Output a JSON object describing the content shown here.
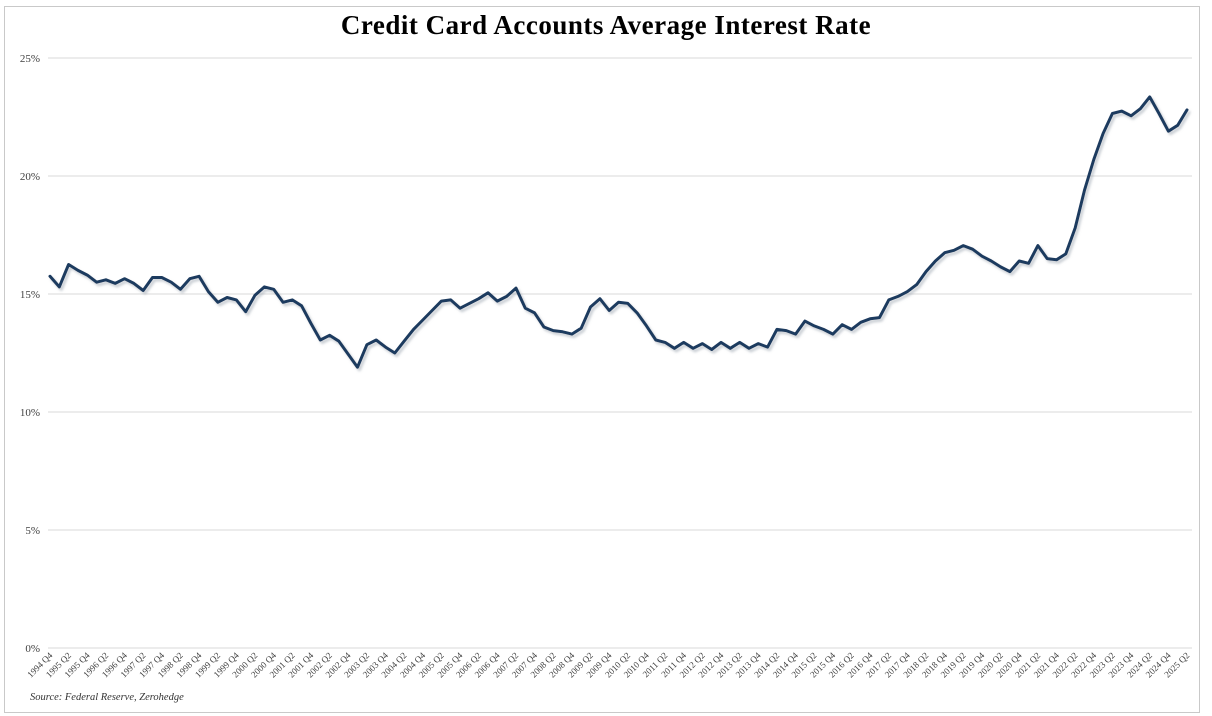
{
  "title": "Credit Card Accounts Average Interest Rate",
  "source": "Source: Federal Reserve, Zerohedge",
  "colors": {
    "line": "#1f3a5e",
    "line_shadow": "#9aa3ad",
    "grid": "#d9d9d9",
    "frame": "#c9c9c9",
    "tick_text": "#404040",
    "title_text": "#000000"
  },
  "y_axis": {
    "ticks": [
      "0%",
      "5%",
      "10%",
      "15%",
      "20%",
      "25%"
    ],
    "min": 0,
    "max": 25
  },
  "x_axis": {
    "labels": [
      "1994 Q4",
      "1995 Q2",
      "1995 Q4",
      "1996 Q2",
      "1996 Q4",
      "1997 Q2",
      "1997 Q4",
      "1998 Q2",
      "1998 Q4",
      "1999 Q2",
      "1999 Q4",
      "2000 Q2",
      "2000 Q4",
      "2001 Q2",
      "2001 Q4",
      "2002 Q2",
      "2002 Q4",
      "2003 Q2",
      "2003 Q4",
      "2004 Q2",
      "2004 Q4",
      "2005 Q2",
      "2005 Q4",
      "2006 Q2",
      "2006 Q4",
      "2007 Q2",
      "2007 Q4",
      "2008 Q2",
      "2008 Q4",
      "2009 Q2",
      "2009 Q4",
      "2010 Q2",
      "2010 Q4",
      "2011 Q2",
      "2011 Q4",
      "2012 Q2",
      "2012 Q4",
      "2013 Q2",
      "2013 Q4",
      "2014 Q2",
      "2014 Q4",
      "2015 Q2",
      "2015 Q4",
      "2016 Q2",
      "2016 Q4",
      "2017 Q2",
      "2017 Q4",
      "2018 Q2",
      "2018 Q4",
      "2019 Q2",
      "2019 Q4",
      "2020 Q2",
      "2020 Q4",
      "2021 Q2",
      "2021 Q4",
      "2022 Q2",
      "2022 Q4",
      "2023 Q2",
      "2023 Q4",
      "2024 Q2",
      "2024 Q4",
      "2025 Q2"
    ]
  },
  "chart_data": {
    "type": "line",
    "title": "Credit Card Accounts Average Interest Rate",
    "xlabel": "",
    "ylabel": "",
    "ylim": [
      0,
      25
    ],
    "grid": "horizontal",
    "legend": "none",
    "series_name": "Average interest rate (%)",
    "x": [
      "1994 Q4",
      "1995 Q1",
      "1995 Q2",
      "1995 Q3",
      "1995 Q4",
      "1996 Q1",
      "1996 Q2",
      "1996 Q3",
      "1996 Q4",
      "1997 Q1",
      "1997 Q2",
      "1997 Q3",
      "1997 Q4",
      "1998 Q1",
      "1998 Q2",
      "1998 Q3",
      "1998 Q4",
      "1999 Q1",
      "1999 Q2",
      "1999 Q3",
      "1999 Q4",
      "2000 Q1",
      "2000 Q2",
      "2000 Q3",
      "2000 Q4",
      "2001 Q1",
      "2001 Q2",
      "2001 Q3",
      "2001 Q4",
      "2002 Q1",
      "2002 Q2",
      "2002 Q3",
      "2002 Q4",
      "2003 Q1",
      "2003 Q2",
      "2003 Q3",
      "2003 Q4",
      "2004 Q1",
      "2004 Q2",
      "2004 Q3",
      "2004 Q4",
      "2005 Q1",
      "2005 Q2",
      "2005 Q3",
      "2005 Q4",
      "2006 Q1",
      "2006 Q2",
      "2006 Q3",
      "2006 Q4",
      "2007 Q1",
      "2007 Q2",
      "2007 Q3",
      "2007 Q4",
      "2008 Q1",
      "2008 Q2",
      "2008 Q3",
      "2008 Q4",
      "2009 Q1",
      "2009 Q2",
      "2009 Q3",
      "2009 Q4",
      "2010 Q1",
      "2010 Q2",
      "2010 Q3",
      "2010 Q4",
      "2011 Q1",
      "2011 Q2",
      "2011 Q3",
      "2011 Q4",
      "2012 Q1",
      "2012 Q2",
      "2012 Q3",
      "2012 Q4",
      "2013 Q1",
      "2013 Q2",
      "2013 Q3",
      "2013 Q4",
      "2014 Q1",
      "2014 Q2",
      "2014 Q3",
      "2014 Q4",
      "2015 Q1",
      "2015 Q2",
      "2015 Q3",
      "2015 Q4",
      "2016 Q1",
      "2016 Q2",
      "2016 Q3",
      "2016 Q4",
      "2017 Q1",
      "2017 Q2",
      "2017 Q3",
      "2017 Q4",
      "2018 Q1",
      "2018 Q2",
      "2018 Q3",
      "2018 Q4",
      "2019 Q1",
      "2019 Q2",
      "2019 Q3",
      "2019 Q4",
      "2020 Q1",
      "2020 Q2",
      "2020 Q3",
      "2020 Q4",
      "2021 Q1",
      "2021 Q2",
      "2021 Q3",
      "2021 Q4",
      "2022 Q1",
      "2022 Q2",
      "2022 Q3",
      "2022 Q4",
      "2023 Q1",
      "2023 Q2",
      "2023 Q3",
      "2023 Q4",
      "2024 Q1",
      "2024 Q2",
      "2024 Q3",
      "2024 Q4",
      "2025 Q1",
      "2025 Q2"
    ],
    "values": [
      15.75,
      15.3,
      16.25,
      16.0,
      15.8,
      15.5,
      15.6,
      15.45,
      15.65,
      15.45,
      15.15,
      15.7,
      15.7,
      15.5,
      15.2,
      15.65,
      15.75,
      15.1,
      14.65,
      14.85,
      14.75,
      14.25,
      14.95,
      15.3,
      15.2,
      14.65,
      14.75,
      14.5,
      13.75,
      13.05,
      13.25,
      13.0,
      12.45,
      11.9,
      12.85,
      13.05,
      12.75,
      12.5,
      13.0,
      13.5,
      13.9,
      14.3,
      14.7,
      14.75,
      14.4,
      14.6,
      14.8,
      15.05,
      14.7,
      14.9,
      15.25,
      14.4,
      14.2,
      13.6,
      13.45,
      13.4,
      13.3,
      13.55,
      14.45,
      14.8,
      14.3,
      14.65,
      14.6,
      14.2,
      13.65,
      13.05,
      12.95,
      12.7,
      12.95,
      12.7,
      12.9,
      12.65,
      12.95,
      12.7,
      12.95,
      12.7,
      12.9,
      12.75,
      13.5,
      13.45,
      13.3,
      13.85,
      13.65,
      13.5,
      13.3,
      13.7,
      13.5,
      13.8,
      13.95,
      14.0,
      14.75,
      14.9,
      15.1,
      15.4,
      15.95,
      16.4,
      16.75,
      16.85,
      17.05,
      16.9,
      16.6,
      16.4,
      16.15,
      15.95,
      16.4,
      16.3,
      17.05,
      16.5,
      16.45,
      16.7,
      17.8,
      19.4,
      20.7,
      21.8,
      22.65,
      22.75,
      22.55,
      22.85,
      23.35,
      22.65,
      21.9,
      22.15,
      22.8
    ]
  }
}
